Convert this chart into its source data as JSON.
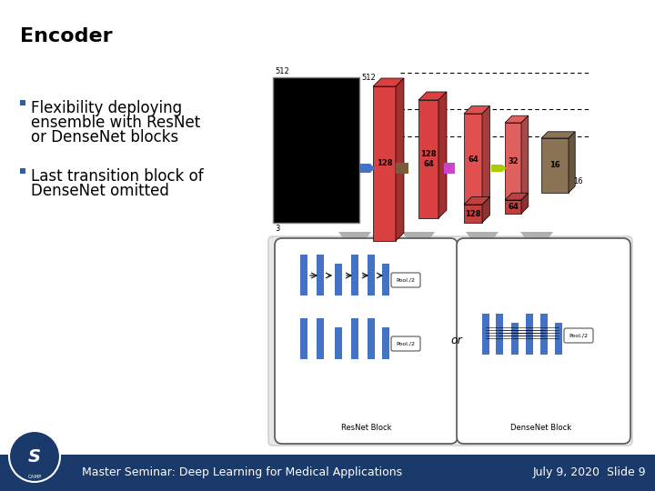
{
  "title": "Encoder",
  "bullet1_line1": "Flexibility deploying",
  "bullet1_line2": "ensemble with ResNet",
  "bullet1_line3": "or DenseNet blocks",
  "bullet2_line1": "Last transition block of",
  "bullet2_line2": "DenseNet omitted",
  "footer_left": "Master Seminar: Deep Learning for Medical Applications",
  "footer_right": "July 9, 2020  Slide 9",
  "footer_bg": "#1a3a6b",
  "footer_text_color": "#ffffff",
  "title_color": "#000000",
  "bullet_color": "#000000",
  "bullet_square_color": "#2e5fa3",
  "background_color": "#ffffff",
  "title_fontsize": 16,
  "bullet_fontsize": 12,
  "footer_fontsize": 9
}
